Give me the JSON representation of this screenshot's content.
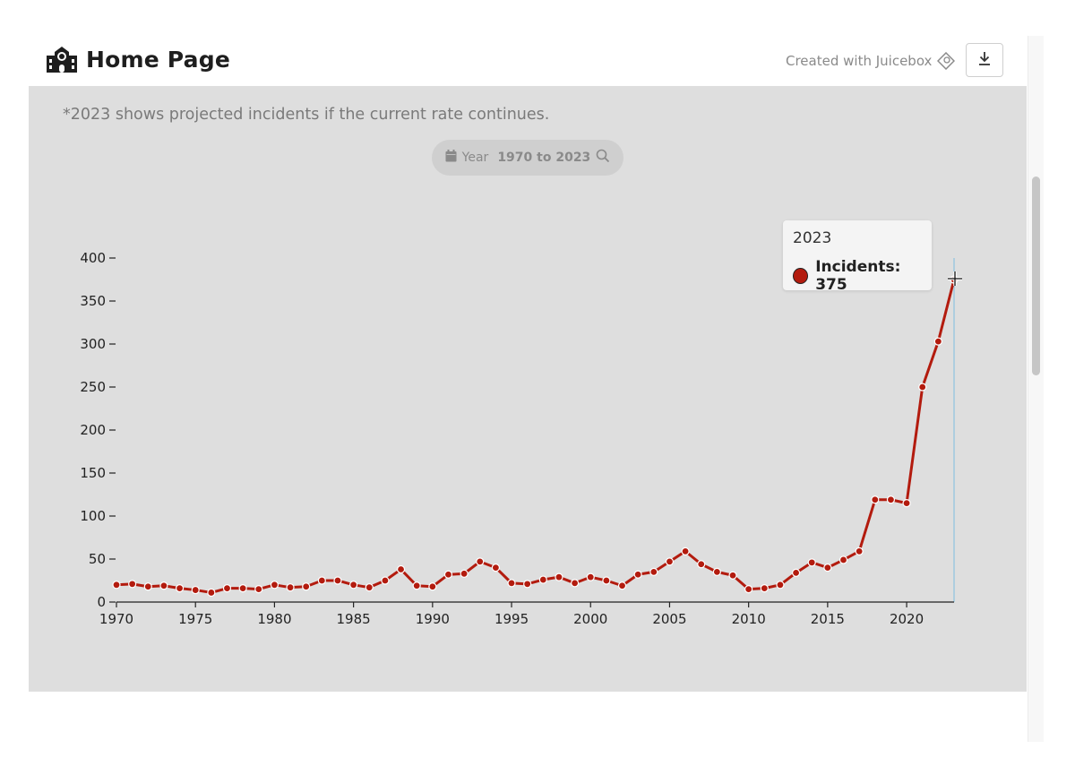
{
  "header": {
    "title": "Home Page",
    "title_icon": "school-building-icon",
    "credit": "Created with Juicebox",
    "credit_icon": "juicebox-logo-icon",
    "download_icon": "download-icon"
  },
  "note": "*2023 shows projected incidents if the current rate continues.",
  "filter": {
    "icon": "calendar-icon",
    "label": "Year",
    "value": "1970 to 2023",
    "search_icon": "search-icon"
  },
  "tooltip": {
    "year": "2023",
    "label": "Incidents: 375",
    "color": "#b31b0e"
  },
  "colors": {
    "line": "#b31b0e",
    "panel": "#dedede",
    "crosshair": "#8fc4e0"
  },
  "chart_data": {
    "type": "line",
    "title": "",
    "xlabel": "",
    "ylabel": "",
    "xlim": [
      1970,
      2023
    ],
    "ylim": [
      0,
      400
    ],
    "x_ticks": [
      1970,
      1975,
      1980,
      1985,
      1990,
      1995,
      2000,
      2005,
      2010,
      2015,
      2020
    ],
    "y_ticks": [
      0,
      50,
      100,
      150,
      200,
      250,
      300,
      350,
      400
    ],
    "grid": false,
    "legend": "none",
    "series": [
      {
        "name": "Incidents",
        "x": [
          1970,
          1971,
          1972,
          1973,
          1974,
          1975,
          1976,
          1977,
          1978,
          1979,
          1980,
          1981,
          1982,
          1983,
          1984,
          1985,
          1986,
          1987,
          1988,
          1989,
          1990,
          1991,
          1992,
          1993,
          1994,
          1995,
          1996,
          1997,
          1998,
          1999,
          2000,
          2001,
          2002,
          2003,
          2004,
          2005,
          2006,
          2007,
          2008,
          2009,
          2010,
          2011,
          2012,
          2013,
          2014,
          2015,
          2016,
          2017,
          2018,
          2019,
          2020,
          2021,
          2022,
          2023
        ],
        "values": [
          20,
          21,
          18,
          19,
          16,
          14,
          11,
          16,
          16,
          15,
          20,
          17,
          18,
          25,
          25,
          20,
          17,
          25,
          38,
          19,
          18,
          32,
          33,
          47,
          40,
          22,
          21,
          26,
          29,
          22,
          29,
          25,
          19,
          32,
          35,
          47,
          59,
          44,
          35,
          31,
          15,
          16,
          20,
          34,
          46,
          40,
          49,
          59,
          119,
          119,
          115,
          250,
          303,
          375
        ]
      }
    ]
  }
}
